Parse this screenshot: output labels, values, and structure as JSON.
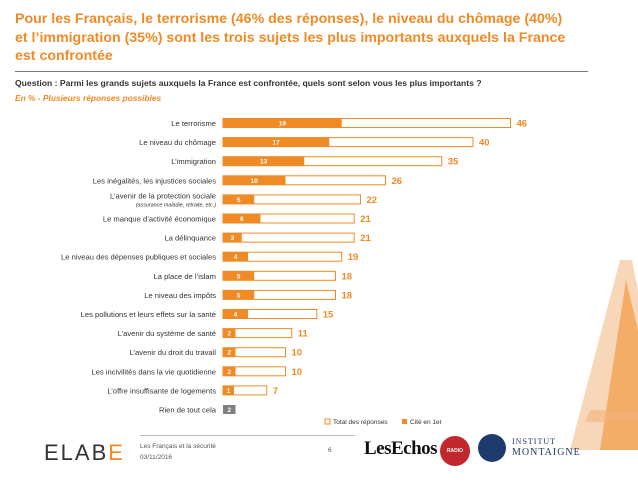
{
  "header": {
    "title_line1": "Pour les Français, le terrorisme (46% des réponses), le niveau du chômage (40%)",
    "title_line2": "et l’immigration (35%) sont les trois sujets les plus importants auxquels la France",
    "title_line3": "est confrontée",
    "question": "Question : Parmi les grands sujets auxquels la France est confrontée, quels sont selon vous les plus importants ?",
    "unit_note": "En  % - Plusieurs réponses possibles"
  },
  "chart_data": {
    "type": "bar",
    "orientation": "horizontal",
    "categories": [
      "Le terrorisme",
      "Le niveau du chômage",
      "L’immigration",
      "Les inégalités, les injustices sociales",
      "L’avenir de la protection sociale",
      "Le manque d’activité économique",
      "La délinquance",
      "Le niveau des dépenses publiques et sociales",
      "La place de l’islam",
      "Le niveau des impôts",
      "Les pollutions et leurs effets sur la santé",
      "L’avenir du système de santé",
      "L’avenir du droit du travail",
      "Les incivilités dans la vie quotidienne",
      "L’offre insuffisante de logements",
      "Rien de tout cela"
    ],
    "category_sublabels": [
      "",
      "",
      "",
      "",
      "(assurance maladie, retraite, etc.)",
      "",
      "",
      "",
      "",
      "",
      "",
      "",
      "",
      "",
      "",
      ""
    ],
    "series": [
      {
        "name": "Total des réponses",
        "values": [
          46,
          40,
          35,
          26,
          22,
          21,
          21,
          19,
          18,
          18,
          15,
          11,
          10,
          10,
          7,
          null
        ],
        "color": "#f08a24"
      },
      {
        "name": "Cité en 1er",
        "values": [
          19,
          17,
          13,
          10,
          5,
          6,
          3,
          4,
          5,
          5,
          4,
          2,
          2,
          2,
          1,
          2
        ],
        "color": "#f08a24"
      }
    ],
    "special_color": "#7f7f7f",
    "legend_position": "bottom-right",
    "xlim": [
      0,
      50
    ]
  },
  "footer": {
    "brand": "ELAB",
    "brand_accent": "E",
    "study": "Les Français et la sécurité",
    "date": "03/11/2016",
    "page": "6",
    "partner1": "LesEchos",
    "partner2": "RADIO CLASSIQUE",
    "partner3_line1": "INSTITUT",
    "partner3_line2": "MONTAIGNE"
  }
}
